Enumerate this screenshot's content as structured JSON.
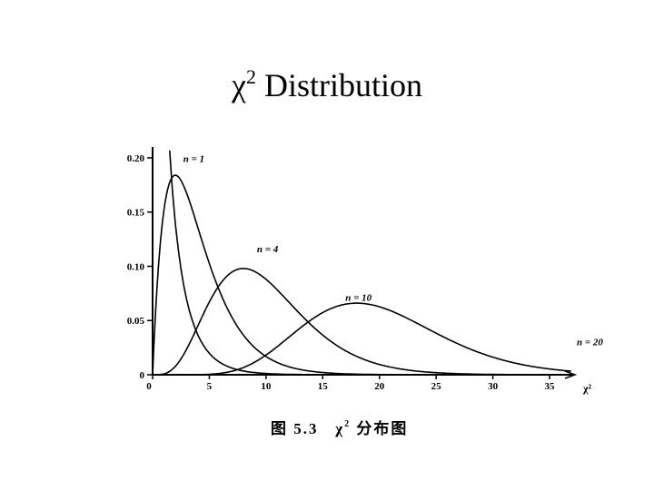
{
  "title": {
    "symbol": "χ",
    "exponent": "2",
    "text": " Distribution"
  },
  "caption": {
    "prefix": "图 5.3",
    "symbol": "χ",
    "exponent": "2",
    "suffix": "分布图"
  },
  "chart_data": {
    "type": "line",
    "title": "",
    "xlabel": "χ²",
    "ylabel": "",
    "xlim": [
      0,
      37
    ],
    "ylim": [
      0,
      0.21
    ],
    "x_ticks": [
      "0",
      "5",
      "10",
      "15",
      "20",
      "25",
      "30",
      "35"
    ],
    "y_ticks": [
      "0.20",
      "0.15",
      "0.10",
      "0.05",
      "0"
    ],
    "grid": false,
    "legend": "none",
    "series": [
      {
        "name": "n = 1",
        "df": 1
      },
      {
        "name": "n = 4",
        "df": 4
      },
      {
        "name": "n = 10",
        "df": 10
      },
      {
        "name": "n = 20",
        "df": 20
      }
    ],
    "peaks": [
      {
        "series": "n = 1",
        "x": 0,
        "y": 0.2
      },
      {
        "series": "n = 4",
        "x": 2,
        "y": 0.184
      },
      {
        "series": "n = 10",
        "x": 8,
        "y": 0.098
      },
      {
        "series": "n = 20",
        "x": 18,
        "y": 0.066
      }
    ]
  }
}
